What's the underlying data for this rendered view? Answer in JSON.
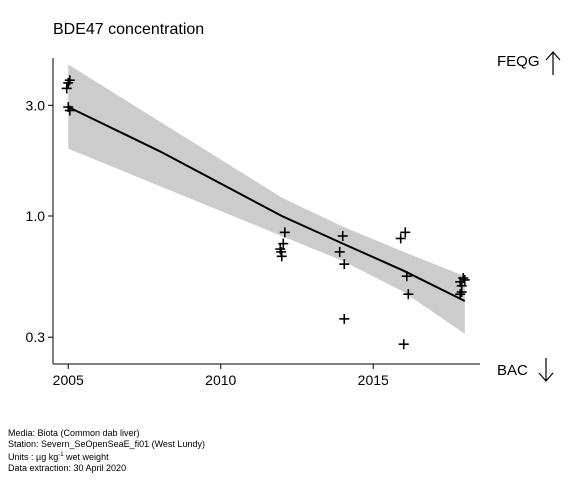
{
  "chart_data": {
    "type": "scatter",
    "title": "BDE47 concentration",
    "xlabel": "",
    "ylabel": "",
    "y_scale": "log",
    "xlim": [
      2004.5,
      2018.5
    ],
    "ylim": [
      0.23,
      4.8
    ],
    "x_ticks": [
      2005,
      2010,
      2015
    ],
    "x_tick_labels": [
      "2005",
      "2010",
      "2015"
    ],
    "y_ticks": [
      0.3,
      1.0,
      3.0
    ],
    "y_tick_labels": [
      "0.3",
      "1.0",
      "3.0"
    ],
    "grid": false,
    "series": [
      {
        "type": "scatter",
        "marker": "plus",
        "points": [
          {
            "x": 2005.0,
            "y": 3.75
          },
          {
            "x": 2005.05,
            "y": 3.85
          },
          {
            "x": 2004.95,
            "y": 3.55
          },
          {
            "x": 2005.0,
            "y": 2.95
          },
          {
            "x": 2005.05,
            "y": 2.85
          },
          {
            "x": 2011.95,
            "y": 0.72
          },
          {
            "x": 2012.0,
            "y": 0.67
          },
          {
            "x": 2012.05,
            "y": 0.76
          },
          {
            "x": 2012.1,
            "y": 0.85
          },
          {
            "x": 2011.98,
            "y": 0.7
          },
          {
            "x": 2013.9,
            "y": 0.7
          },
          {
            "x": 2014.0,
            "y": 0.82
          },
          {
            "x": 2014.05,
            "y": 0.62
          },
          {
            "x": 2014.05,
            "y": 0.36
          },
          {
            "x": 2015.9,
            "y": 0.8
          },
          {
            "x": 2016.05,
            "y": 0.85
          },
          {
            "x": 2016.1,
            "y": 0.55
          },
          {
            "x": 2016.15,
            "y": 0.46
          },
          {
            "x": 2016.0,
            "y": 0.28
          },
          {
            "x": 2017.85,
            "y": 0.52
          },
          {
            "x": 2017.9,
            "y": 0.5
          },
          {
            "x": 2017.95,
            "y": 0.54
          },
          {
            "x": 2018.0,
            "y": 0.53
          },
          {
            "x": 2017.9,
            "y": 0.47
          },
          {
            "x": 2017.85,
            "y": 0.46
          }
        ]
      },
      {
        "type": "line",
        "x": [
          2005.0,
          2008.0,
          2012.0,
          2014.0,
          2016.0,
          2018.0
        ],
        "y": [
          2.95,
          1.9,
          1.0,
          0.76,
          0.58,
          0.43
        ]
      },
      {
        "type": "area",
        "x": [
          2005.0,
          2012.0,
          2014.0,
          2016.0,
          2018.0
        ],
        "upper": [
          4.5,
          1.2,
          0.9,
          0.7,
          0.55
        ],
        "lower": [
          1.95,
          0.82,
          0.64,
          0.47,
          0.31
        ]
      }
    ],
    "colors": {
      "band": "#cccccc",
      "line": "#000000",
      "marker": "#000000"
    },
    "annotations": [
      {
        "label": "FEQG",
        "arrow": "up"
      },
      {
        "label": "BAC",
        "arrow": "down"
      }
    ]
  },
  "footer": {
    "media": "Media: Biota (Common dab liver)",
    "station": "Station: Severn_SeOpenSeaE_fi01 (West Lundy)",
    "units_prefix": "Units : µg kg",
    "units_sup": "-1",
    "units_suffix": " wet weight",
    "extraction": "Data extraction: 30 April 2020"
  }
}
